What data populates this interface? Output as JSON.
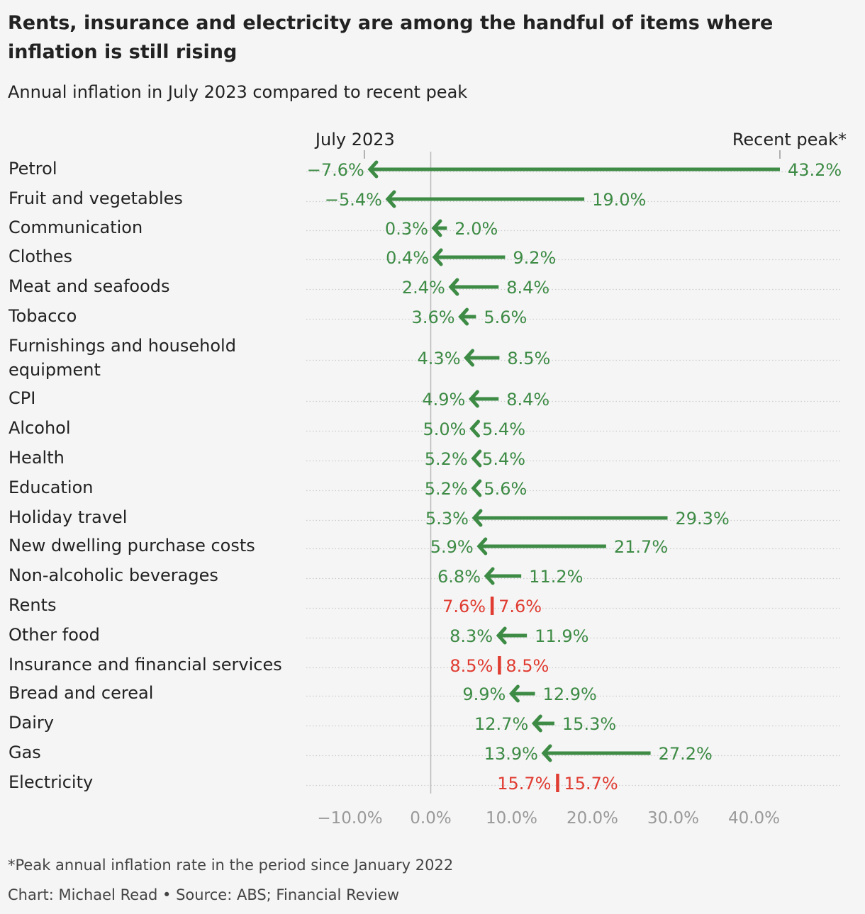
{
  "chart_data": {
    "type": "arrow",
    "title": "Rents, insurance and electricity are among the handful of items where inflation is still rising",
    "subtitle": "Annual inflation in July 2023 compared to recent peak",
    "legend": {
      "current_label": "July 2023",
      "peak_label": "Recent peak*"
    },
    "x_ticks": [
      -10,
      0,
      10,
      20,
      30,
      40
    ],
    "x_tick_labels": [
      "−10.0%",
      "0.0%",
      "10.0%",
      "20.0%",
      "30.0%",
      "40.0%"
    ],
    "xlim": [
      -15,
      50
    ],
    "categories": [
      "Petrol",
      "Fruit and vegetables",
      "Communication",
      "Clothes",
      "Meat and seafoods",
      "Tobacco",
      "Furnishings and household equipment",
      "CPI",
      "Alcohol",
      "Health",
      "Education",
      "Holiday travel",
      "New dwelling purchase costs",
      "Non-alcoholic beverages",
      "Rents",
      "Other food",
      "Insurance and financial services",
      "Bread and cereal",
      "Dairy",
      "Gas",
      "Electricity"
    ],
    "series": [
      {
        "name": "July 2023",
        "values": [
          -7.6,
          -5.4,
          0.3,
          0.4,
          2.4,
          3.6,
          4.3,
          4.9,
          5.0,
          5.2,
          5.2,
          5.3,
          5.9,
          6.8,
          7.6,
          8.3,
          8.5,
          9.9,
          12.7,
          13.9,
          15.7
        ],
        "labels": [
          "−7.6%",
          "−5.4%",
          "0.3%",
          "0.4%",
          "2.4%",
          "3.6%",
          "4.3%",
          "4.9%",
          "5.0%",
          "5.2%",
          "5.2%",
          "5.3%",
          "5.9%",
          "6.8%",
          "7.6%",
          "8.3%",
          "8.5%",
          "9.9%",
          "12.7%",
          "13.9%",
          "15.7%"
        ]
      },
      {
        "name": "Recent peak*",
        "values": [
          43.2,
          19.0,
          2.0,
          9.2,
          8.4,
          5.6,
          8.5,
          8.4,
          5.4,
          5.4,
          5.6,
          29.3,
          21.7,
          11.2,
          7.6,
          11.9,
          8.5,
          12.9,
          15.3,
          27.2,
          15.7
        ],
        "labels": [
          "43.2%",
          "19.0%",
          "2.0%",
          "9.2%",
          "8.4%",
          "5.6%",
          "8.5%",
          "8.4%",
          "5.4%",
          "5.4%",
          "5.6%",
          "29.3%",
          "21.7%",
          "11.2%",
          "7.6%",
          "11.9%",
          "8.5%",
          "12.9%",
          "15.3%",
          "27.2%",
          "15.7%"
        ]
      }
    ],
    "colors": {
      "falling": "#3d8b45",
      "rising": "#e03c31",
      "axis_zero": "#bbbbbb",
      "grid": "#cccccc",
      "tick_text": "#999999"
    },
    "grid": true
  },
  "footnote": "*Peak annual inflation rate in the period since January 2022",
  "source": "Chart: Michael Read • Source: ABS; Financial Review"
}
